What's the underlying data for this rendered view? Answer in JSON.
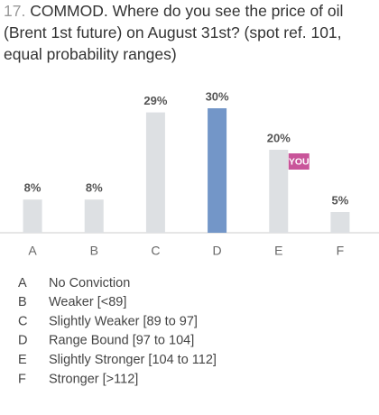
{
  "chart_data": {
    "type": "bar",
    "number": "17.",
    "title": "COMMOD. Where do you see the price of oil (Brent 1st future) on August 31st? (spot ref. 101, equal probability ranges)",
    "categories": [
      "A",
      "B",
      "C",
      "D",
      "E",
      "F"
    ],
    "values": [
      8,
      8,
      29,
      30,
      20,
      5
    ],
    "value_labels": [
      "8%",
      "8%",
      "29%",
      "30%",
      "20%",
      "5%"
    ],
    "colors": [
      "#dde0e3",
      "#dde0e3",
      "#dde0e3",
      "#7396c8",
      "#dde0e3",
      "#dde0e3"
    ],
    "marker": {
      "label": "YOU",
      "category": "E",
      "color": "#c9559a"
    },
    "descriptions": [
      "No Conviction",
      "Weaker [<89]",
      "Slightly Weaker [89 to 97]",
      "Range Bound [97 to 104]",
      "Slightly Stronger [104 to 112]",
      "Stronger [>112]"
    ]
  }
}
